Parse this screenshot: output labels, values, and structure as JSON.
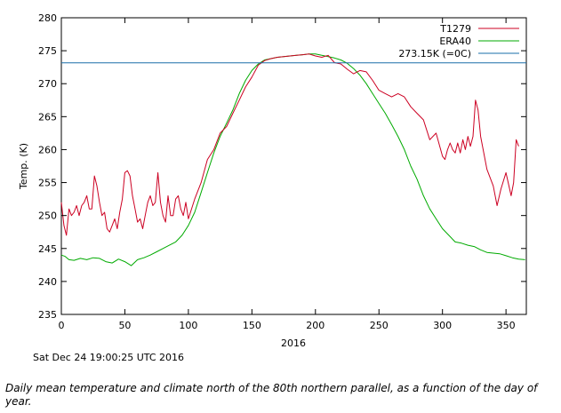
{
  "chart_data": {
    "type": "line",
    "title": "",
    "xlabel": "2016",
    "ylabel": "Temp. (K)",
    "xlim": [
      0,
      366
    ],
    "ylim": [
      235,
      280
    ],
    "x_ticks": [
      "0",
      "50",
      "100",
      "150",
      "200",
      "250",
      "300",
      "350"
    ],
    "y_ticks": [
      "235",
      "240",
      "245",
      "250",
      "255",
      "260",
      "265",
      "270",
      "275",
      "280"
    ],
    "grid": false,
    "legend_position": "top-right",
    "series": [
      {
        "name": "T1279",
        "color": "#cc0022",
        "x": [
          0,
          2,
          4,
          6,
          8,
          10,
          12,
          14,
          16,
          18,
          20,
          22,
          24,
          26,
          28,
          30,
          32,
          34,
          36,
          38,
          40,
          42,
          44,
          46,
          48,
          50,
          52,
          54,
          56,
          58,
          60,
          62,
          64,
          66,
          68,
          70,
          72,
          74,
          76,
          78,
          80,
          82,
          84,
          86,
          88,
          90,
          92,
          94,
          96,
          98,
          100,
          105,
          110,
          115,
          120,
          125,
          130,
          135,
          140,
          145,
          150,
          155,
          160,
          165,
          170,
          175,
          180,
          185,
          190,
          195,
          200,
          205,
          210,
          215,
          220,
          225,
          230,
          235,
          240,
          245,
          250,
          255,
          260,
          265,
          270,
          275,
          280,
          285,
          290,
          295,
          300,
          302,
          304,
          306,
          308,
          310,
          312,
          314,
          316,
          318,
          320,
          322,
          324,
          326,
          328,
          330,
          335,
          340,
          343,
          346,
          350,
          354,
          356,
          358,
          360
        ],
        "values": [
          252.0,
          248.5,
          247.0,
          251.0,
          250.0,
          250.5,
          251.5,
          250.0,
          251.5,
          252.0,
          253.0,
          251.0,
          251.0,
          256.0,
          254.5,
          252.0,
          250.0,
          250.5,
          248.0,
          247.5,
          248.5,
          249.5,
          248.0,
          250.5,
          252.5,
          256.5,
          256.8,
          256.0,
          253.0,
          251.0,
          249.0,
          249.5,
          248.0,
          250.0,
          252.0,
          253.0,
          251.5,
          252.0,
          256.5,
          252.0,
          250.0,
          249.0,
          253.0,
          250.0,
          250.0,
          252.5,
          253.0,
          251.0,
          250.0,
          252.0,
          249.5,
          252.5,
          255.0,
          258.5,
          260.0,
          262.5,
          263.5,
          265.5,
          267.5,
          269.5,
          271.0,
          272.8,
          273.5,
          273.8,
          274.0,
          274.1,
          274.2,
          274.3,
          274.4,
          274.5,
          274.2,
          274.0,
          274.3,
          273.2,
          273.0,
          272.2,
          271.5,
          272.0,
          271.8,
          270.5,
          269.0,
          268.5,
          268.0,
          268.5,
          268.0,
          266.5,
          265.5,
          264.5,
          261.5,
          262.5,
          259.0,
          258.5,
          260.0,
          261.0,
          260.0,
          259.5,
          261.0,
          259.5,
          261.5,
          260.0,
          262.0,
          260.5,
          262.0,
          267.5,
          266.0,
          262.0,
          257.0,
          254.5,
          251.5,
          254.0,
          256.5,
          253.0,
          255.0,
          261.5,
          260.5
        ]
      },
      {
        "name": "ERA40",
        "color": "#00aa00",
        "x": [
          0,
          3,
          6,
          10,
          15,
          20,
          25,
          30,
          35,
          40,
          45,
          50,
          55,
          60,
          65,
          70,
          75,
          80,
          85,
          90,
          95,
          100,
          105,
          110,
          115,
          120,
          125,
          130,
          135,
          140,
          145,
          150,
          155,
          160,
          165,
          170,
          175,
          180,
          185,
          190,
          195,
          200,
          205,
          210,
          215,
          220,
          225,
          230,
          235,
          240,
          245,
          250,
          255,
          260,
          265,
          270,
          275,
          280,
          285,
          290,
          295,
          300,
          305,
          310,
          315,
          320,
          325,
          330,
          335,
          340,
          345,
          350,
          355,
          360,
          365
        ],
        "values": [
          244.0,
          243.8,
          243.3,
          243.2,
          243.5,
          243.3,
          243.6,
          243.5,
          243.0,
          242.8,
          243.4,
          243.0,
          242.4,
          243.3,
          243.6,
          244.0,
          244.5,
          245.0,
          245.5,
          246.0,
          247.0,
          248.5,
          250.5,
          253.5,
          256.5,
          259.5,
          262.0,
          264.0,
          266.0,
          268.5,
          270.5,
          272.0,
          273.0,
          273.6,
          273.8,
          274.0,
          274.1,
          274.2,
          274.3,
          274.4,
          274.5,
          274.5,
          274.3,
          274.1,
          273.9,
          273.6,
          273.1,
          272.3,
          271.3,
          270.0,
          268.5,
          267.0,
          265.5,
          263.8,
          262.0,
          260.0,
          257.5,
          255.5,
          253.0,
          251.0,
          249.5,
          248.0,
          247.0,
          246.0,
          245.8,
          245.5,
          245.3,
          244.8,
          244.4,
          244.3,
          244.2,
          243.9,
          243.6,
          243.4,
          243.3
        ]
      },
      {
        "name": "273.15K (=0C)",
        "color": "#1a6fa8",
        "x": [
          0,
          366
        ],
        "values": [
          273.15,
          273.15
        ]
      }
    ],
    "annotations": []
  },
  "timestamp": "Sat Dec 24 19:00:25 UTC 2016",
  "caption": "Daily mean temperature and climate north of the 80th northern parallel, as a function of the day of year."
}
